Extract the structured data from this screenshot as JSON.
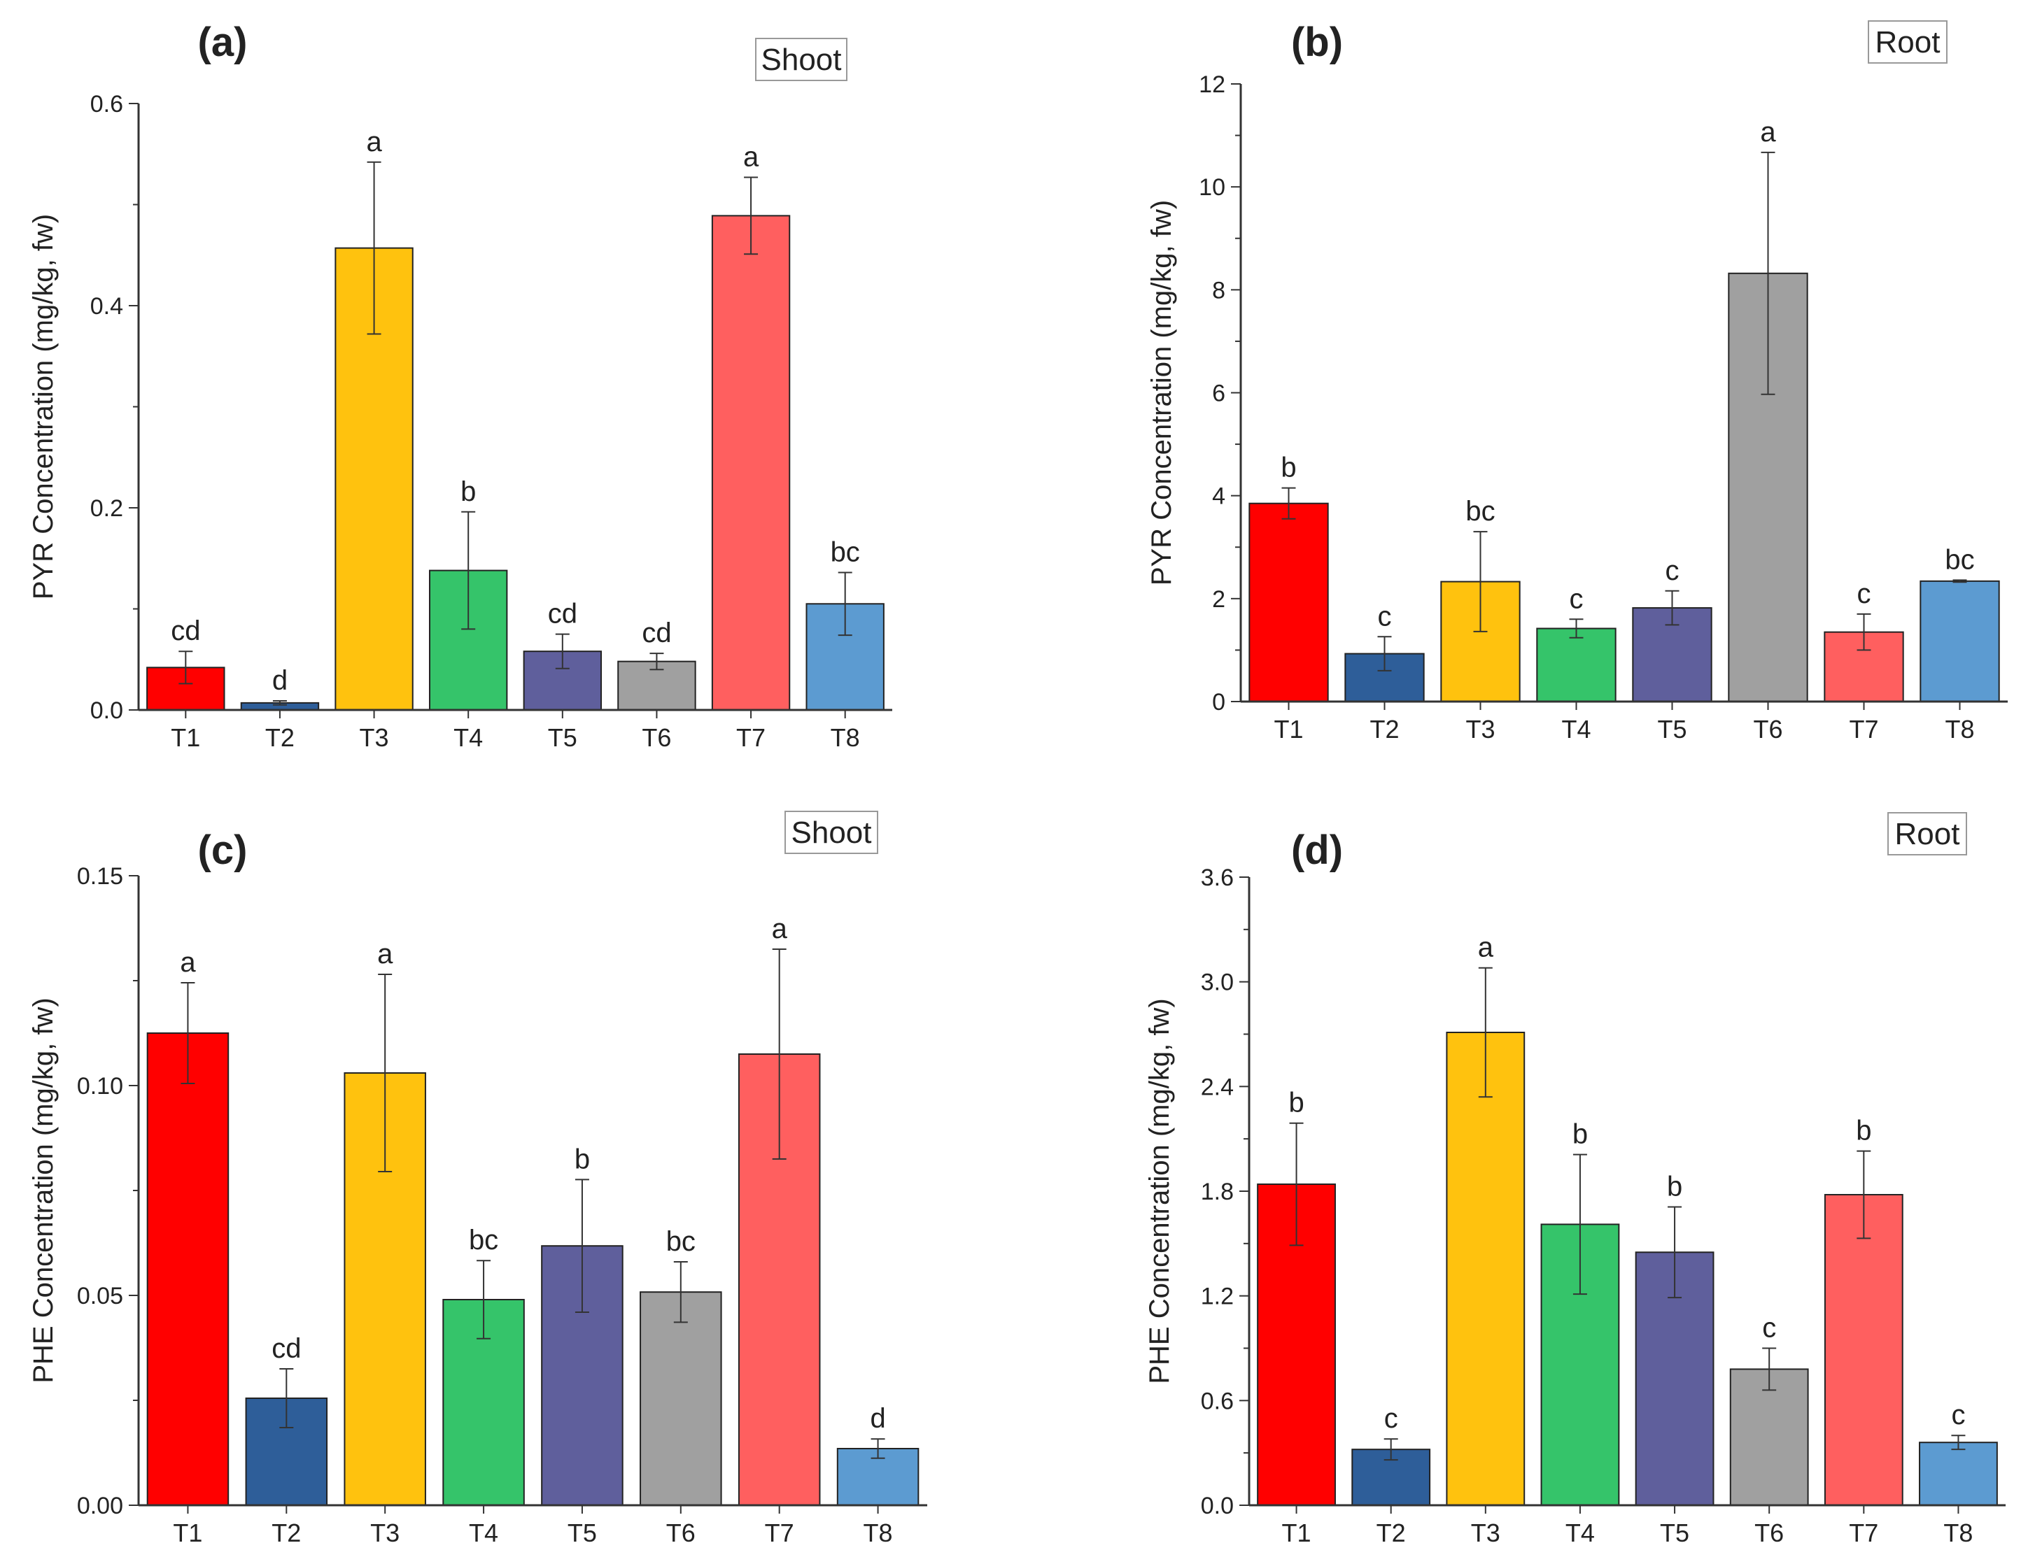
{
  "chart_data": [
    {
      "type": "bar",
      "panel_label": "(a)",
      "tag": "Shoot",
      "ylabel": "PYR Concentration (mg/kg, fw)",
      "ylim": [
        0,
        0.6
      ],
      "yticks": [
        "0.0",
        "0.2",
        "0.4",
        "0.6"
      ],
      "categories": [
        "T1",
        "T2",
        "T3",
        "T4",
        "T5",
        "T6",
        "T7",
        "T8"
      ],
      "values": [
        0.042,
        0.007,
        0.457,
        0.138,
        0.058,
        0.048,
        0.489,
        0.105
      ],
      "errors": [
        0.016,
        0.002,
        0.085,
        0.058,
        0.017,
        0.008,
        0.038,
        0.031
      ],
      "letters": [
        "cd",
        "d",
        "a",
        "b",
        "cd",
        "cd",
        "a",
        "bc"
      ]
    },
    {
      "type": "bar",
      "panel_label": "(b)",
      "tag": "Root",
      "ylabel": "PYR Concentration (mg/kg, fw)",
      "ylim": [
        0,
        12
      ],
      "yticks": [
        "0",
        "2",
        "4",
        "6",
        "8",
        "10",
        "12"
      ],
      "categories": [
        "T1",
        "T2",
        "T3",
        "T4",
        "T5",
        "T6",
        "T7",
        "T8"
      ],
      "values": [
        3.85,
        0.93,
        2.33,
        1.42,
        1.82,
        8.32,
        1.35,
        2.34
      ],
      "errors": [
        0.3,
        0.33,
        0.97,
        0.18,
        0.33,
        2.35,
        0.35,
        0.02
      ],
      "letters": [
        "b",
        "c",
        "bc",
        "c",
        "c",
        "a",
        "c",
        "bc"
      ]
    },
    {
      "type": "bar",
      "panel_label": "(c)",
      "tag": "Shoot",
      "ylabel": "PHE Concentration (mg/kg, fw)",
      "ylim": [
        0,
        0.15
      ],
      "yticks": [
        "0.00",
        "0.05",
        "0.10",
        "0.15"
      ],
      "categories": [
        "T1",
        "T2",
        "T3",
        "T4",
        "T5",
        "T6",
        "T7",
        "T8"
      ],
      "values": [
        0.1125,
        0.0255,
        0.103,
        0.049,
        0.0618,
        0.0508,
        0.1075,
        0.0135
      ],
      "errors": [
        0.012,
        0.007,
        0.0235,
        0.0093,
        0.0158,
        0.0072,
        0.025,
        0.0023
      ],
      "letters": [
        "a",
        "cd",
        "a",
        "bc",
        "b",
        "bc",
        "a",
        "d"
      ]
    },
    {
      "type": "bar",
      "panel_label": "(d)",
      "tag": "Root",
      "ylabel": "PHE Concentration (mg/kg, fw)",
      "ylim": [
        0,
        3.6
      ],
      "yticks": [
        "0.0",
        "0.6",
        "1.2",
        "1.8",
        "2.4",
        "3.0",
        "3.6"
      ],
      "categories": [
        "T1",
        "T2",
        "T3",
        "T4",
        "T5",
        "T6",
        "T7",
        "T8"
      ],
      "values": [
        1.84,
        0.32,
        2.71,
        1.61,
        1.45,
        0.78,
        1.78,
        0.36
      ],
      "errors": [
        0.35,
        0.06,
        0.37,
        0.4,
        0.26,
        0.12,
        0.25,
        0.04
      ],
      "letters": [
        "b",
        "c",
        "a",
        "b",
        "b",
        "c",
        "b",
        "c"
      ]
    }
  ],
  "colors": [
    "#ff0000",
    "#2e5e99",
    "#ffc20e",
    "#35c46a",
    "#5f5f9c",
    "#a0a0a0",
    "#ff5f5f",
    "#5c9bd1"
  ]
}
